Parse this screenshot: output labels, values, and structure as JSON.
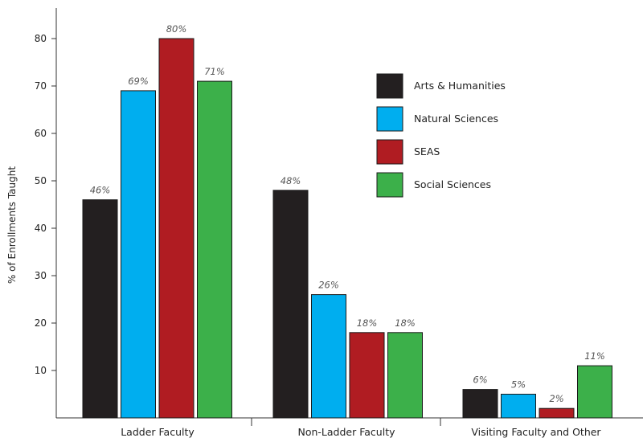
{
  "chart_data": {
    "type": "bar",
    "title": "",
    "xlabel": "",
    "ylabel": "% of Enrollments Taught",
    "ylim": [
      0,
      87
    ],
    "yticks": [
      10,
      20,
      30,
      40,
      50,
      60,
      70,
      80
    ],
    "grid": false,
    "legend_position": "top-right",
    "categories": [
      "Ladder Faculty",
      "Non-Ladder Faculty",
      "Visiting Faculty and Other"
    ],
    "series": [
      {
        "name": "Arts & Humanities",
        "color": "#231f20",
        "values": [
          46,
          48,
          6
        ],
        "labels": [
          "46%",
          "48%",
          "6%"
        ]
      },
      {
        "name": "Natural Sciences",
        "color": "#00aeef",
        "values": [
          69,
          26,
          5
        ],
        "labels": [
          "69%",
          "26%",
          "5%"
        ]
      },
      {
        "name": "SEAS",
        "color": "#b01c22",
        "values": [
          80,
          18,
          2
        ],
        "labels": [
          "80%",
          "18%",
          "2%"
        ]
      },
      {
        "name": "Social Sciences",
        "color": "#3cb04a",
        "values": [
          71,
          18,
          11
        ],
        "labels": [
          "71%",
          "18%",
          "11%"
        ]
      }
    ]
  }
}
